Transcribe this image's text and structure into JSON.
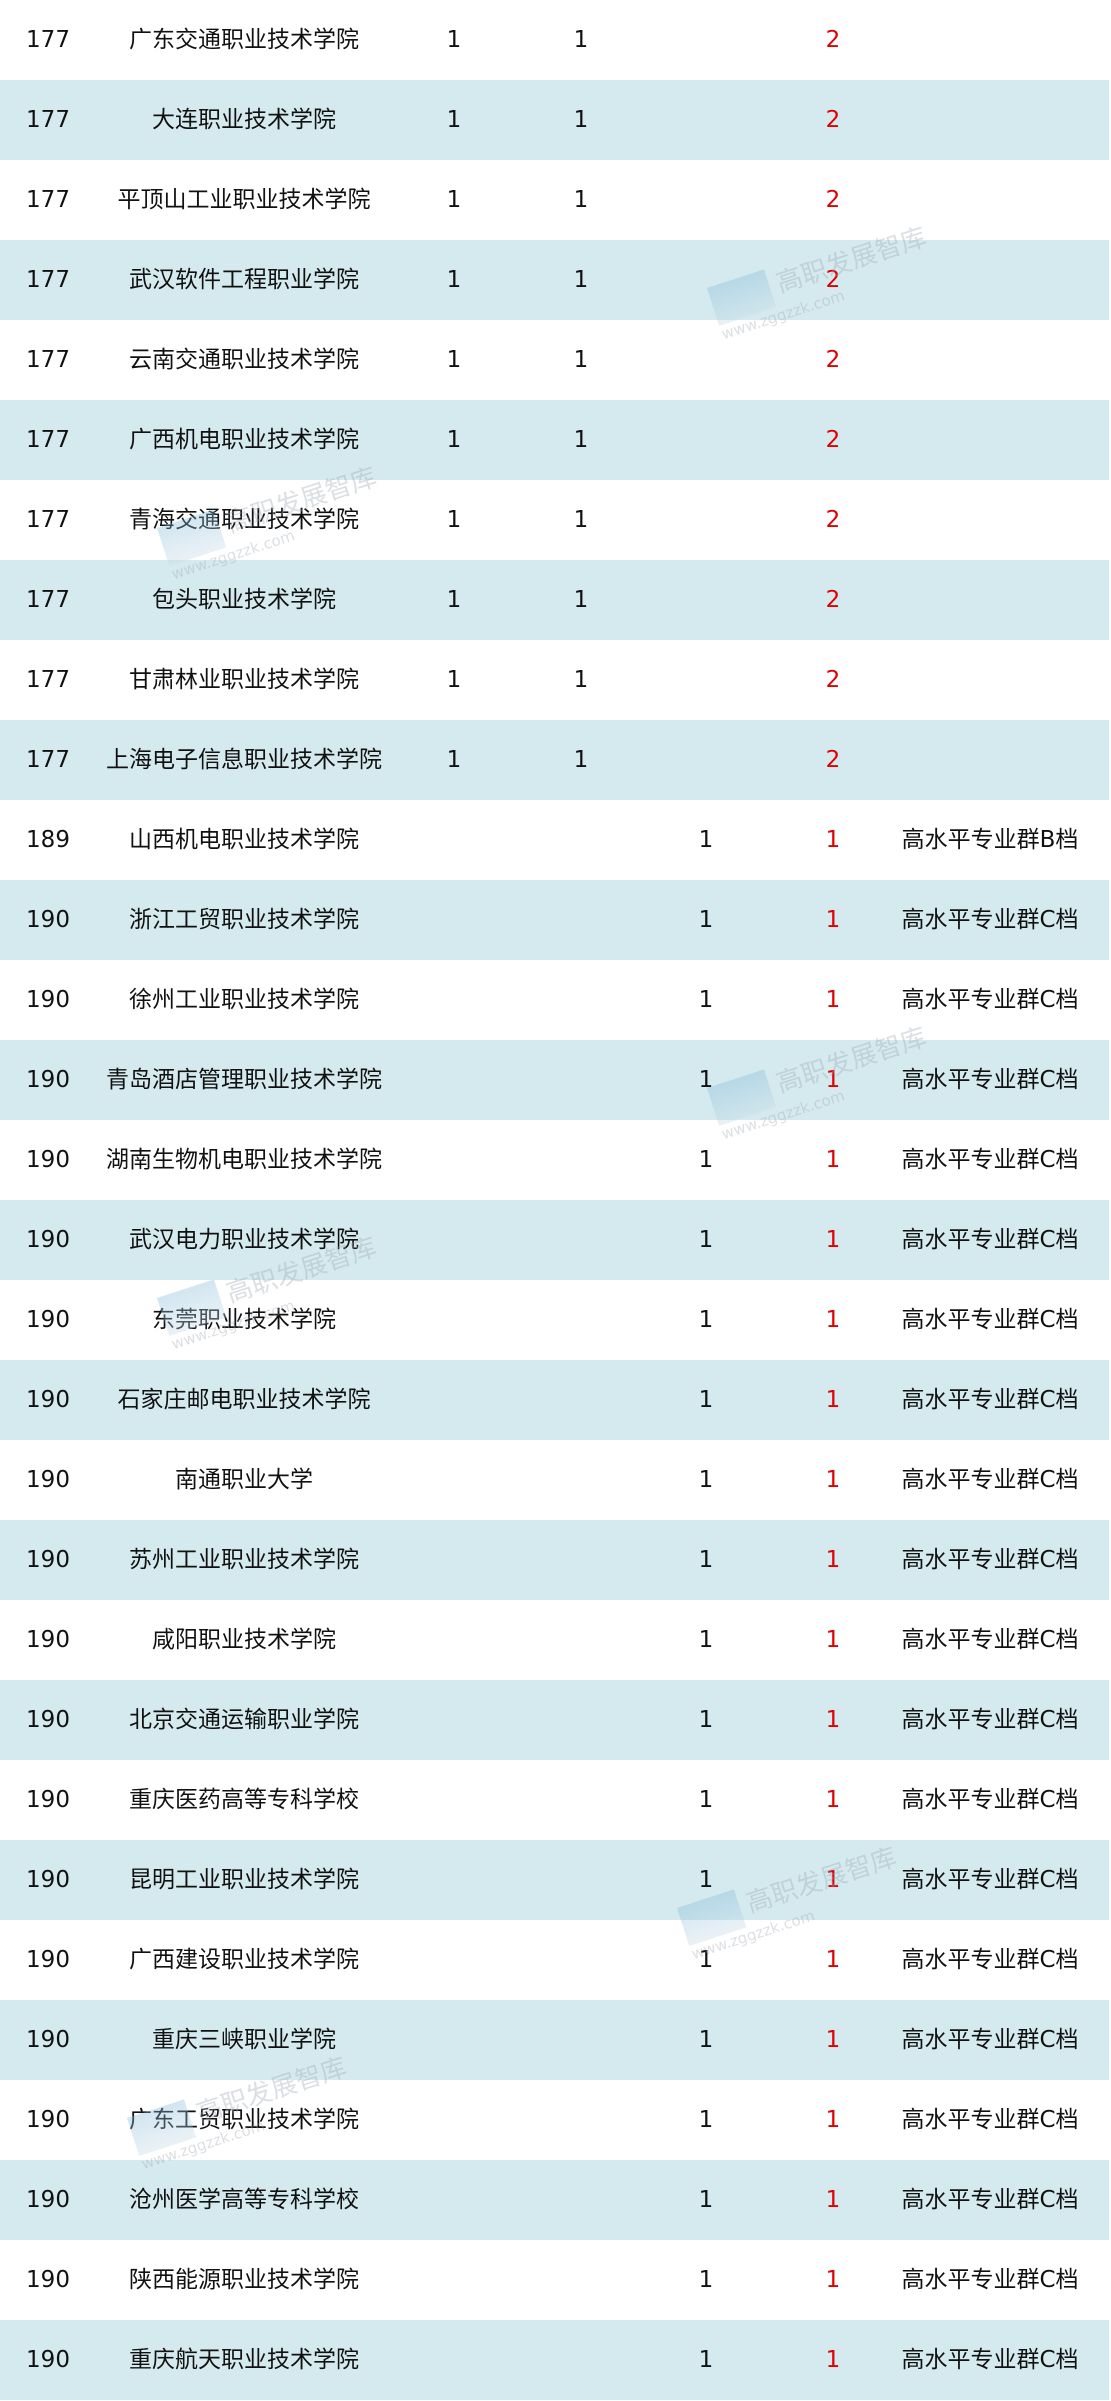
{
  "rows": [
    [
      "177",
      "广东交通职业技术学院",
      "1",
      "1",
      "",
      "2",
      ""
    ],
    [
      "177",
      "大连职业技术学院",
      "1",
      "1",
      "",
      "2",
      ""
    ],
    [
      "177",
      "平顶山工业职业技术学院",
      "1",
      "1",
      "",
      "2",
      ""
    ],
    [
      "177",
      "武汉软件工程职业学院",
      "1",
      "1",
      "",
      "2",
      ""
    ],
    [
      "177",
      "云南交通职业技术学院",
      "1",
      "1",
      "",
      "2",
      ""
    ],
    [
      "177",
      "广西机电职业技术学院",
      "1",
      "1",
      "",
      "2",
      ""
    ],
    [
      "177",
      "青海交通职业技术学院",
      "1",
      "1",
      "",
      "2",
      ""
    ],
    [
      "177",
      "包头职业技术学院",
      "1",
      "1",
      "",
      "2",
      ""
    ],
    [
      "177",
      "甘肃林业职业技术学院",
      "1",
      "1",
      "",
      "2",
      ""
    ],
    [
      "177",
      "上海电子信息职业技术学院",
      "1",
      "1",
      "",
      "2",
      ""
    ],
    [
      "189",
      "山西机电职业技术学院",
      "",
      "",
      "1",
      "1",
      "高水平专业群B档"
    ],
    [
      "190",
      "浙江工贸职业技术学院",
      "",
      "",
      "1",
      "1",
      "高水平专业群C档"
    ],
    [
      "190",
      "徐州工业职业技术学院",
      "",
      "",
      "1",
      "1",
      "高水平专业群C档"
    ],
    [
      "190",
      "青岛酒店管理职业技术学院",
      "",
      "",
      "1",
      "1",
      "高水平专业群C档"
    ],
    [
      "190",
      "湖南生物机电职业技术学院",
      "",
      "",
      "1",
      "1",
      "高水平专业群C档"
    ],
    [
      "190",
      "武汉电力职业技术学院",
      "",
      "",
      "1",
      "1",
      "高水平专业群C档"
    ],
    [
      "190",
      "东莞职业技术学院",
      "",
      "",
      "1",
      "1",
      "高水平专业群C档"
    ],
    [
      "190",
      "石家庄邮电职业技术学院",
      "",
      "",
      "1",
      "1",
      "高水平专业群C档"
    ],
    [
      "190",
      "南通职业大学",
      "",
      "",
      "1",
      "1",
      "高水平专业群C档"
    ],
    [
      "190",
      "苏州工业职业技术学院",
      "",
      "",
      "1",
      "1",
      "高水平专业群C档"
    ],
    [
      "190",
      "咸阳职业技术学院",
      "",
      "",
      "1",
      "1",
      "高水平专业群C档"
    ],
    [
      "190",
      "北京交通运输职业学院",
      "",
      "",
      "1",
      "1",
      "高水平专业群C档"
    ],
    [
      "190",
      "重庆医药高等专科学校",
      "",
      "",
      "1",
      "1",
      "高水平专业群C档"
    ],
    [
      "190",
      "昆明工业职业技术学院",
      "",
      "",
      "1",
      "1",
      "高水平专业群C档"
    ],
    [
      "190",
      "广西建设职业技术学院",
      "",
      "",
      "1",
      "1",
      "高水平专业群C档"
    ],
    [
      "190",
      "重庆三峡职业学院",
      "",
      "",
      "1",
      "1",
      "高水平专业群C档"
    ],
    [
      "190",
      "广东工贸职业技术学院",
      "",
      "",
      "1",
      "1",
      "高水平专业群C档"
    ],
    [
      "190",
      "沧州医学高等专科学校",
      "",
      "",
      "1",
      "1",
      "高水平专业群C档"
    ],
    [
      "190",
      "陕西能源职业技术学院",
      "",
      "",
      "1",
      "1",
      "高水平专业群C档"
    ],
    [
      "190",
      "重庆航天职业技术学院",
      "",
      "",
      "1",
      "1",
      "高水平专业群C档"
    ]
  ],
  "watermark": {
    "name": "高职发展智库",
    "url": "www.zggzzk.com"
  },
  "colors": {
    "stripe": "#d5eaef",
    "total": "#e00000"
  }
}
